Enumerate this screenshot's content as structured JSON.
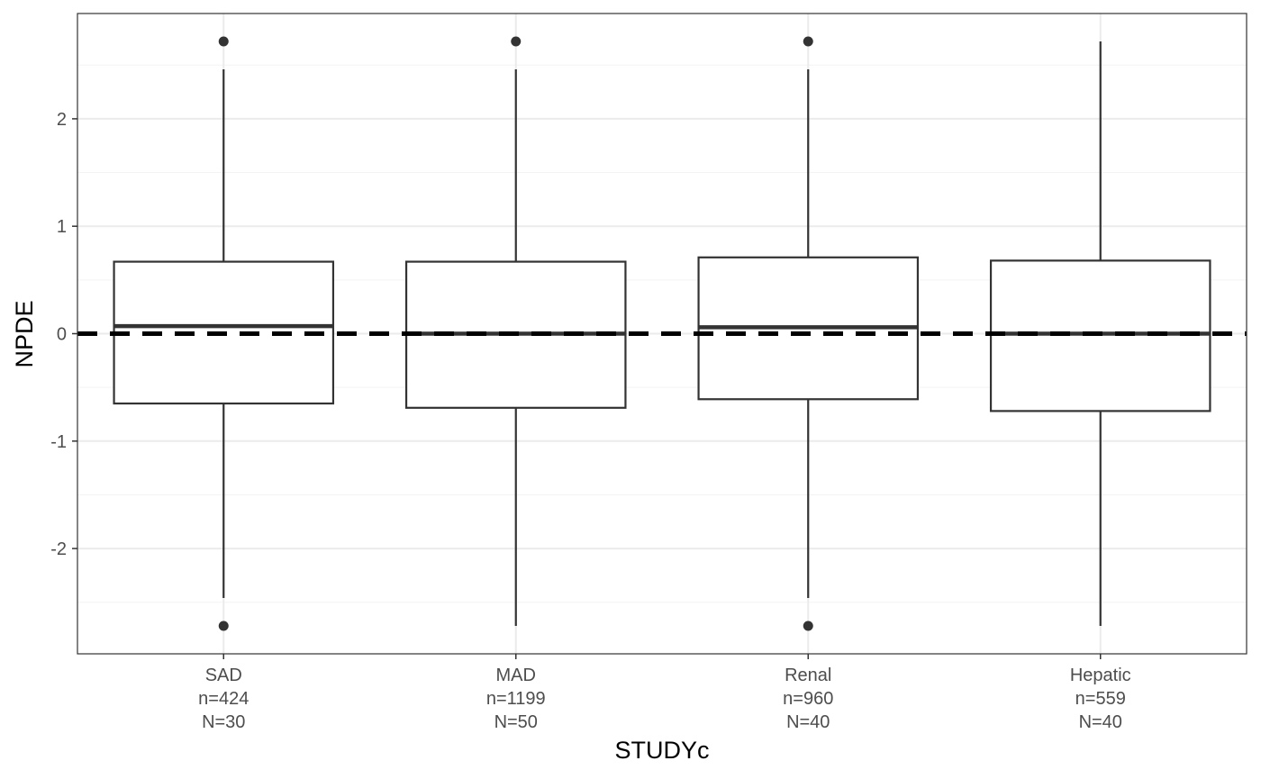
{
  "chart_data": {
    "type": "box",
    "xlabel": "STUDYc",
    "ylabel": "NPDE",
    "ylim": [
      -2.98,
      2.98
    ],
    "y_ticks": [
      -2,
      -1,
      0,
      1,
      2
    ],
    "y_tick_labels": [
      "-2",
      "-1",
      "0",
      "1",
      "2"
    ],
    "grid": true,
    "reference_line": {
      "y": 0,
      "style": "dashed"
    },
    "categories": [
      {
        "label_lines": [
          "SAD",
          "n=424",
          "N=30"
        ],
        "min": -2.46,
        "q1": -0.65,
        "median": 0.07,
        "q3": 0.67,
        "max": 2.46,
        "outliers": [
          2.72,
          -2.72
        ]
      },
      {
        "label_lines": [
          "MAD",
          "n=1199",
          "N=50"
        ],
        "min": -2.72,
        "q1": -0.69,
        "median": 0.0,
        "q3": 0.67,
        "max": 2.46,
        "outliers": [
          2.72
        ]
      },
      {
        "label_lines": [
          "Renal",
          "n=960",
          "N=40"
        ],
        "min": -2.46,
        "q1": -0.61,
        "median": 0.06,
        "q3": 0.71,
        "max": 2.46,
        "outliers": [
          2.72,
          -2.72
        ]
      },
      {
        "label_lines": [
          "Hepatic",
          "n=559",
          "N=40"
        ],
        "min": -2.72,
        "q1": -0.72,
        "median": 0.0,
        "q3": 0.68,
        "max": 2.72,
        "outliers": []
      }
    ]
  },
  "colors": {
    "panel_border": "#333333",
    "grid_major": "#ebebeb",
    "grid_minor": "#f3f3f3",
    "box_line": "#333333",
    "reference_line": "#000000",
    "tick_text": "#4d4d4d"
  }
}
